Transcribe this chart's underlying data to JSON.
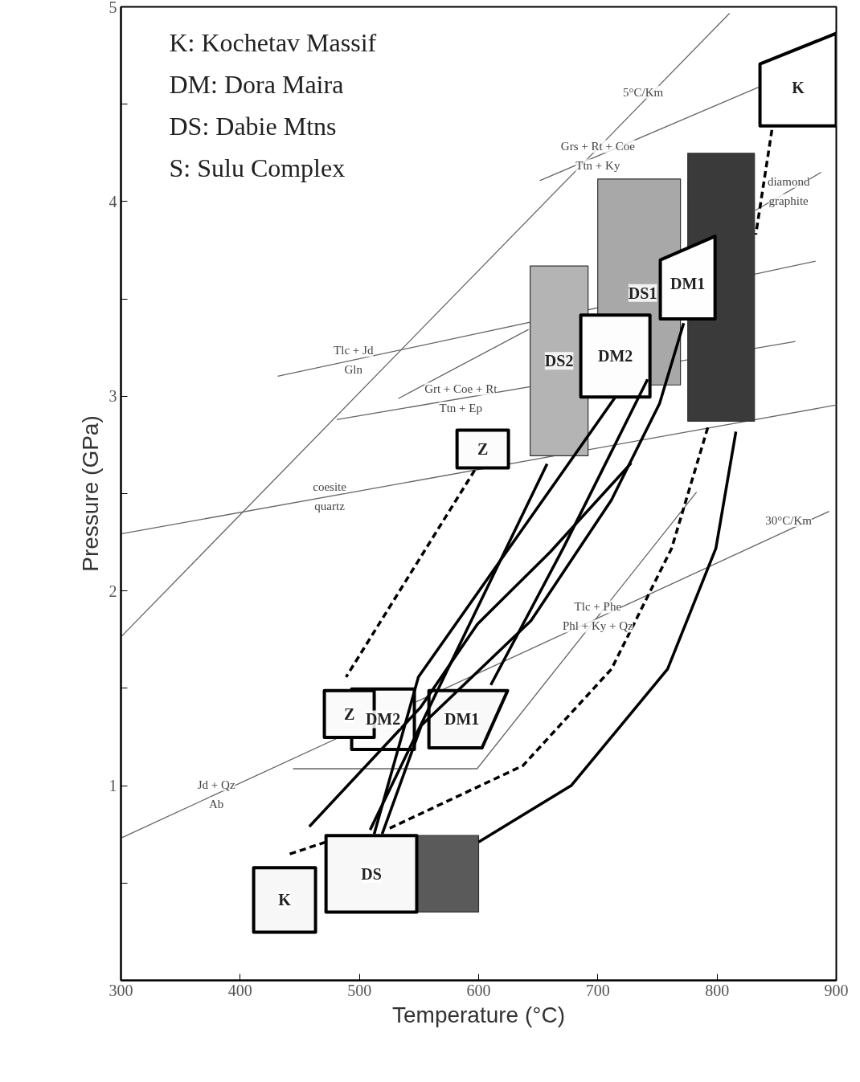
{
  "chart_data": {
    "type": "line",
    "xlabel": "Temperature (°C)",
    "ylabel": "Pressure (GPa)",
    "xlim": [
      300,
      900
    ],
    "ylim": [
      0,
      5
    ],
    "xticks": [
      300,
      400,
      500,
      600,
      700,
      800,
      900
    ],
    "yticks": [
      {
        "value": 0.5,
        "label": null
      },
      1,
      {
        "value": 1.5,
        "label": null
      },
      2,
      {
        "value": 2.5,
        "label": null
      },
      3,
      {
        "value": 3.5,
        "label": null
      },
      4,
      {
        "value": 4.5,
        "label": null
      },
      5
    ],
    "grid": false,
    "marker": "none",
    "series": [
      {
        "color": "#666666",
        "x": [
          300,
          810.5
        ],
        "values": [
          1.764,
          4.967
        ]
      },
      {
        "color": "#666666",
        "x": [
          651.3,
          834.7
        ],
        "values": [
          4.107,
          4.587
        ]
      },
      {
        "color": "#666666",
        "x": [
          832,
          887.3
        ],
        "values": [
          3.954,
          4.15
        ]
      },
      {
        "color": "#666666",
        "x": [
          431.5,
          882.6
        ],
        "values": [
          3.103,
          3.694
        ]
      },
      {
        "color": "#666666",
        "x": [
          532.6,
          641.9
        ],
        "values": [
          2.988,
          3.343
        ]
      },
      {
        "color": "#666666",
        "x": [
          481.0,
          865.7
        ],
        "values": [
          2.88,
          3.281
        ]
      },
      {
        "color": "#666666",
        "x": [
          300,
          900
        ],
        "values": [
          2.293,
          2.955
        ]
      },
      {
        "color": "#666666",
        "x": [
          300,
          894
        ],
        "values": [
          0.731,
          2.409
        ]
      },
      {
        "color": "#666666",
        "x": [
          444.3,
          598.7,
          782.8
        ],
        "values": [
          1.087,
          1.087,
          2.508
        ]
      },
      {
        "type": "area",
        "name": "DS1",
        "color": "#a8a8a8",
        "x": [
          699.9,
          769.3,
          769.3,
          743.7,
          743.7,
          699.9,
          699.9
        ],
        "values": [
          4.116,
          4.116,
          3.058,
          3.058,
          3.417,
          3.417,
          4.116
        ]
      },
      {
        "type": "area",
        "name": "DS2",
        "color": "#b4b4b4",
        "x": [
          643.2,
          691.8,
          691.8,
          643.2,
          643.2
        ],
        "values": [
          3.669,
          3.669,
          2.694,
          2.694,
          3.669
        ]
      },
      {
        "type": "area",
        "color": "#3a3a3a",
        "x": [
          775.4,
          831.4,
          831.4,
          775.4,
          775.4
        ],
        "values": [
          4.248,
          4.248,
          2.872,
          2.872,
          4.248
        ]
      },
      {
        "type": "area",
        "color": "#5a5a5a",
        "x": [
          548.1,
          600,
          600,
          548.1,
          548.1
        ],
        "values": [
          0.744,
          0.744,
          0.351,
          0.351,
          0.744
        ]
      },
      {
        "type": "area",
        "name": "K",
        "color": "#ffffff",
        "x": [
          836,
          900,
          900,
          836,
          836
        ],
        "values": [
          4.707,
          4.864,
          4.388,
          4.388,
          4.707
        ]
      },
      {
        "type": "area",
        "name": "DM1",
        "color": "#fefefe",
        "x": [
          752.4,
          798.3,
          798.3,
          752.4,
          752.4
        ],
        "values": [
          3.7,
          3.822,
          3.397,
          3.397,
          3.7
        ]
      },
      {
        "type": "area",
        "name": "DM2",
        "color": "#fdfdfd",
        "x": [
          685.7,
          743.7,
          743.7,
          685.7,
          685.7
        ],
        "values": [
          3.417,
          3.417,
          2.996,
          2.996,
          3.417
        ]
      },
      {
        "type": "area",
        "name": "Z",
        "color": "#fcfcfc",
        "x": [
          581.9,
          625,
          625,
          581.9,
          581.9
        ],
        "values": [
          2.826,
          2.826,
          2.632,
          2.632,
          2.826
        ]
      },
      {
        "type": "area",
        "name": "DM2",
        "color": "#fbfbfb",
        "x": [
          493.5,
          546.1,
          546.1,
          493.5,
          493.5
        ],
        "values": [
          1.496,
          1.496,
          1.186,
          1.186,
          1.496
        ]
      },
      {
        "type": "area",
        "name": "Z",
        "color": "#fafafa",
        "x": [
          470.6,
          512.4,
          512.4,
          470.6,
          470.6
        ],
        "values": [
          1.488,
          1.488,
          1.248,
          1.248,
          1.488
        ]
      },
      {
        "type": "area",
        "name": "DM1",
        "color": "#f9f9f9",
        "x": [
          558.3,
          624.3,
          602.8,
          558.3,
          558.3
        ],
        "values": [
          1.488,
          1.488,
          1.194,
          1.194,
          1.488
        ]
      },
      {
        "type": "area",
        "name": "DS",
        "color": "#f8f8f8",
        "x": [
          472,
          548.1,
          548.1,
          472,
          472
        ],
        "values": [
          0.744,
          0.744,
          0.351,
          0.351,
          0.744
        ]
      },
      {
        "type": "area",
        "name": "K",
        "color": "#f7f7f7",
        "x": [
          411.3,
          463.2,
          463.2,
          411.3,
          411.3
        ],
        "values": [
          0.579,
          0.579,
          0.248,
          0.248,
          0.579
        ]
      },
      {
        "color": "#000000",
        "line_style": "dashed",
        "x": [
          846,
          832.5
        ],
        "values": [
          4.368,
          3.83
        ]
      },
      {
        "color": "#000000",
        "line_style": "dashed",
        "x": [
          596.7,
          488.8
        ],
        "values": [
          2.62,
          1.558
        ]
      },
      {
        "color": "#000000",
        "line_style": "dashed",
        "x": [
          441.6,
          472
        ],
        "values": [
          0.649,
          0.711
        ]
      },
      {
        "color": "#000000",
        "x": [
          657.4,
          509
        ],
        "values": [
          2.653,
          0.773
        ]
      },
      {
        "color": "#000000",
        "x": [
          714.7,
          549.5,
          512.4
        ],
        "values": [
          2.996,
          1.558,
          0.752
        ]
      },
      {
        "color": "#000000",
        "x": [
          741.7,
          711.4,
          670.9,
          610.2
        ],
        "values": [
          3.087,
          2.715,
          2.219,
          1.517
        ]
      },
      {
        "color": "#000000",
        "x": [
          772,
          751.8,
          711.4,
          643.9,
          552,
          519.1
        ],
        "values": [
          3.376,
          2.963,
          2.467,
          1.847,
          1.31,
          0.752
        ]
      },
      {
        "color": "#000000",
        "x": [
          728,
          660,
          599,
          551,
          458
        ],
        "values": [
          2.657,
          2.2,
          1.83,
          1.4,
          0.79
        ]
      },
      {
        "color": "#000000",
        "line_style": "dashed",
        "x": [
          792.2,
          761.9,
          711.4,
          637.2,
          522.5
        ],
        "values": [
          2.839,
          2.219,
          1.599,
          1.103,
          0.773
        ]
      },
      {
        "color": "#000000",
        "x": [
          815.8,
          799,
          758.5,
          677.6,
          600
        ],
        "values": [
          2.818,
          2.219,
          1.599,
          1.0,
          0.711
        ]
      }
    ],
    "annotations": [
      "K: Kochetav Massif",
      "DM: Dora Maira",
      "DS: Dabie Mtns",
      "S: Sulu Complex",
      {
        "text": "5°C/Km",
        "x": 738,
        "y": 4.512
      },
      {
        "text": "Grs + Rt + Coe",
        "x": 700,
        "y": 4.234
      },
      {
        "text": "Ttn + Ky",
        "x": 700,
        "y": 4.234
      },
      {
        "text": "diamond",
        "x": 860,
        "y": 4.054
      },
      {
        "text": "graphite",
        "x": 860,
        "y": 4.054
      },
      {
        "text": "Tlc + Jd",
        "x": 495,
        "y": 3.186
      },
      {
        "text": "Gln",
        "x": 495,
        "y": 3.186
      },
      {
        "text": "Grt + Coe + Rt",
        "x": 585,
        "y": 2.988
      },
      {
        "text": "Ttn + Ep",
        "x": 585,
        "y": 2.988
      },
      {
        "text": "coesite",
        "x": 475,
        "y": 2.486
      },
      {
        "text": "quartz",
        "x": 475,
        "y": 2.486
      },
      {
        "text": "Jd + Qz",
        "x": 380,
        "y": 0.957
      },
      {
        "text": "Ab",
        "x": 380,
        "y": 0.957
      },
      {
        "text": "Tlc + Phe",
        "x": 700,
        "y": 1.869
      },
      {
        "text": "Phl + Ky + Qz",
        "x": 700,
        "y": 1.869
      },
      {
        "text": "30°C/Km",
        "x": 860,
        "y": 2.312
      }
    ]
  }
}
